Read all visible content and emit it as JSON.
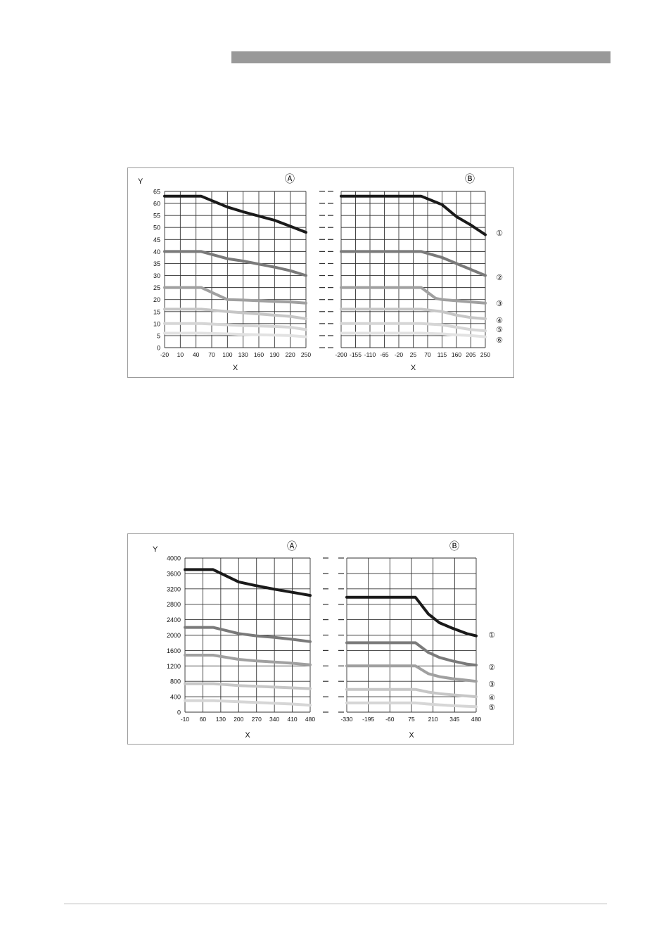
{
  "colors": {
    "header_bar": "#999999",
    "curve_1": "#1a1a1a",
    "curve_2": "#7a7a7a",
    "curve_3": "#a0a0a0",
    "curve_4": "#c6c6c6",
    "curve_5": "#d6d6d6",
    "curve_6": "#e2e2e2"
  },
  "chart_data": [
    {
      "type": "line",
      "ylabel": "Y",
      "xlabel": "X",
      "yticks": [
        "0",
        "5",
        "10",
        "15",
        "20",
        "25",
        "30",
        "35",
        "40",
        "45",
        "50",
        "55",
        "60",
        "65"
      ],
      "ylim": [
        0,
        65
      ],
      "grid": true,
      "curve_markers": [
        "①",
        "②",
        "③",
        "④",
        "⑤",
        "⑥"
      ],
      "panels": [
        {
          "label": "Ⓐ",
          "xticks": [
            "-20",
            "10",
            "40",
            "70",
            "100",
            "130",
            "160",
            "190",
            "220",
            "250"
          ],
          "xlim": [
            -20,
            250
          ],
          "series": [
            {
              "marker": "①",
              "x": [
                -20,
                50,
                100,
                130,
                190,
                220,
                250
              ],
              "y": [
                63,
                63,
                58.5,
                56.5,
                53,
                50.5,
                48
              ]
            },
            {
              "marker": "②",
              "x": [
                -20,
                50,
                100,
                130,
                190,
                220,
                250
              ],
              "y": [
                40,
                40,
                37,
                36,
                33.5,
                32,
                30
              ]
            },
            {
              "marker": "③",
              "x": [
                -20,
                50,
                100,
                130,
                190,
                220,
                250
              ],
              "y": [
                25,
                25,
                20,
                19.8,
                19.2,
                19,
                18.5
              ]
            },
            {
              "marker": "④",
              "x": [
                -20,
                50,
                100,
                130,
                190,
                220,
                250
              ],
              "y": [
                16,
                16,
                15,
                14.5,
                13.5,
                13,
                12
              ]
            },
            {
              "marker": "⑤",
              "x": [
                -20,
                50,
                100,
                130,
                190,
                220,
                250
              ],
              "y": [
                10,
                10,
                9.5,
                9.2,
                8.8,
                8.5,
                7.5
              ]
            },
            {
              "marker": "⑥",
              "x": [
                -20,
                50,
                100,
                130,
                190,
                220,
                250
              ],
              "y": [
                6,
                6,
                5.7,
                5.5,
                5.2,
                5,
                4.5
              ]
            }
          ]
        },
        {
          "label": "Ⓑ",
          "xticks": [
            "-200",
            "-155",
            "-110",
            "-65",
            "-20",
            "25",
            "70",
            "115",
            "160",
            "205",
            "250"
          ],
          "xlim": [
            -200,
            250
          ],
          "series": [
            {
              "marker": "①",
              "x": [
                -200,
                50,
                115,
                160,
                205,
                250
              ],
              "y": [
                63,
                63,
                59.5,
                54.5,
                51,
                47
              ]
            },
            {
              "marker": "②",
              "x": [
                -200,
                50,
                115,
                160,
                205,
                250
              ],
              "y": [
                40,
                40,
                37.5,
                35,
                32.5,
                30
              ]
            },
            {
              "marker": "③",
              "x": [
                -200,
                50,
                95,
                115,
                160,
                205,
                250
              ],
              "y": [
                25,
                25,
                20.5,
                20,
                19.5,
                19,
                18.5
              ]
            },
            {
              "marker": "④",
              "x": [
                -200,
                50,
                115,
                160,
                205,
                250
              ],
              "y": [
                16,
                16,
                15,
                13.5,
                12.5,
                12
              ]
            },
            {
              "marker": "⑤",
              "x": [
                -200,
                50,
                115,
                160,
                205,
                250
              ],
              "y": [
                10,
                10,
                9.5,
                8.5,
                7.5,
                7
              ]
            },
            {
              "marker": "⑥",
              "x": [
                -200,
                50,
                115,
                160,
                205,
                250
              ],
              "y": [
                6,
                6,
                5.7,
                5.3,
                5,
                4.5
              ]
            }
          ]
        }
      ]
    },
    {
      "type": "line",
      "ylabel": "Y",
      "xlabel": "X",
      "yticks": [
        "0",
        "400",
        "800",
        "1200",
        "1600",
        "2000",
        "2400",
        "2800",
        "3200",
        "3600",
        "4000"
      ],
      "ylim": [
        0,
        4000
      ],
      "grid": true,
      "curve_markers": [
        "①",
        "②",
        "③",
        "④",
        "⑤"
      ],
      "panels": [
        {
          "label": "Ⓐ",
          "xticks": [
            "-10",
            "60",
            "130",
            "200",
            "270",
            "340",
            "410",
            "480"
          ],
          "xlim": [
            -10,
            480
          ],
          "series": [
            {
              "marker": "①",
              "x": [
                -10,
                100,
                200,
                270,
                340,
                410,
                480
              ],
              "y": [
                3700,
                3700,
                3380,
                3280,
                3190,
                3110,
                3030
              ]
            },
            {
              "marker": "②",
              "x": [
                -10,
                100,
                200,
                270,
                340,
                410,
                480
              ],
              "y": [
                2200,
                2200,
                2040,
                1980,
                1940,
                1890,
                1830
              ]
            },
            {
              "marker": "③",
              "x": [
                -10,
                100,
                200,
                270,
                340,
                410,
                480
              ],
              "y": [
                1480,
                1480,
                1370,
                1330,
                1300,
                1270,
                1230
              ]
            },
            {
              "marker": "④",
              "x": [
                -10,
                100,
                200,
                270,
                340,
                410,
                480
              ],
              "y": [
                740,
                740,
                690,
                670,
                650,
                630,
                610
              ]
            },
            {
              "marker": "⑤",
              "x": [
                -10,
                100,
                200,
                270,
                340,
                410,
                480
              ],
              "y": [
                300,
                300,
                270,
                250,
                230,
                210,
                180
              ]
            }
          ]
        },
        {
          "label": "Ⓑ",
          "xticks": [
            "-330",
            "-195",
            "-60",
            "75",
            "210",
            "345",
            "480"
          ],
          "xlim": [
            -330,
            480
          ],
          "series": [
            {
              "marker": "①",
              "x": [
                -330,
                100,
                180,
                250,
                330,
                420,
                480
              ],
              "y": [
                2980,
                2980,
                2550,
                2320,
                2180,
                2040,
                1980
              ]
            },
            {
              "marker": "②",
              "x": [
                -330,
                100,
                180,
                250,
                330,
                420,
                480
              ],
              "y": [
                1800,
                1800,
                1550,
                1420,
                1330,
                1250,
                1220
              ]
            },
            {
              "marker": "③",
              "x": [
                -330,
                100,
                180,
                250,
                330,
                420,
                480
              ],
              "y": [
                1200,
                1200,
                1000,
                920,
                870,
                830,
                800
              ]
            },
            {
              "marker": "④",
              "x": [
                -330,
                100,
                180,
                250,
                330,
                420,
                480
              ],
              "y": [
                590,
                590,
                520,
                480,
                450,
                420,
                400
              ]
            },
            {
              "marker": "⑤",
              "x": [
                -330,
                100,
                180,
                250,
                330,
                420,
                480
              ],
              "y": [
                240,
                240,
                210,
                190,
                170,
                150,
                140
              ]
            }
          ]
        }
      ]
    }
  ]
}
